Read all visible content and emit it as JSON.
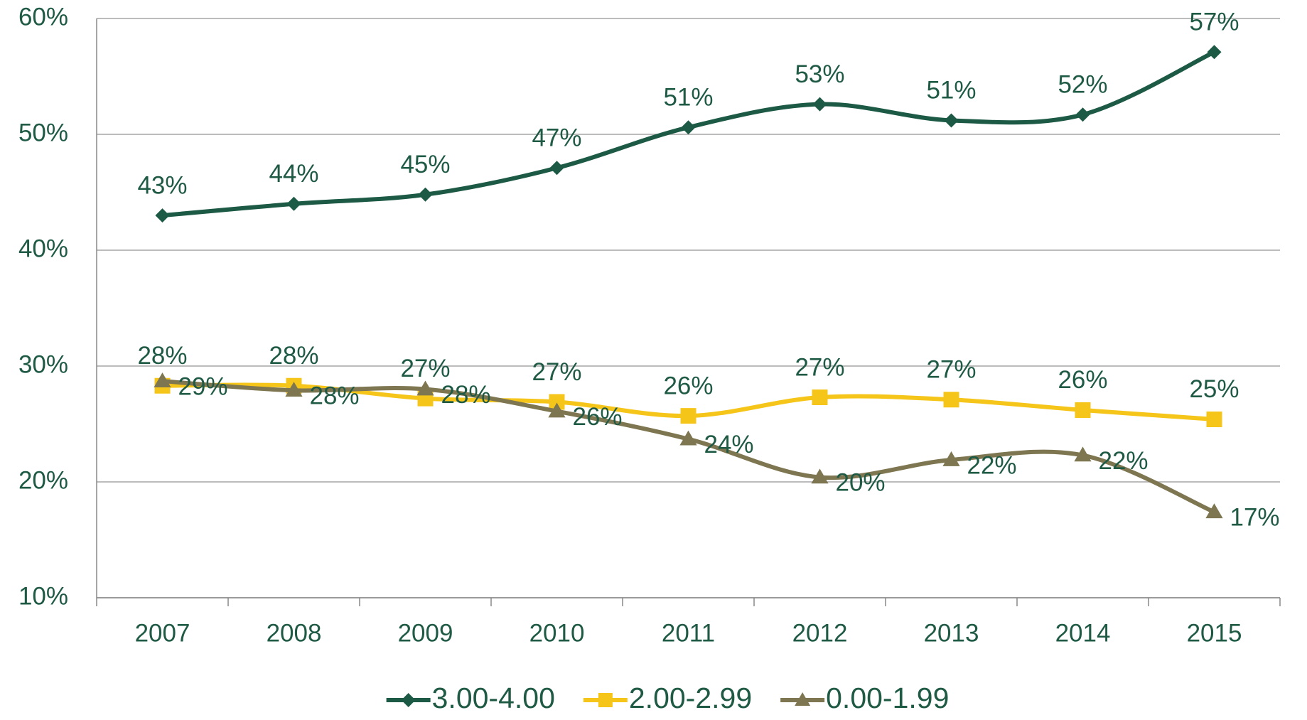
{
  "chart_data": {
    "type": "line",
    "smooth": true,
    "categories": [
      "2007",
      "2008",
      "2009",
      "2010",
      "2011",
      "2012",
      "2013",
      "2014",
      "2015"
    ],
    "series": [
      {
        "name": "3.00-4.00",
        "color": "#1d5a45",
        "marker": "diamond",
        "label_position": "above",
        "values": [
          43,
          44,
          44.8,
          47.1,
          50.6,
          52.6,
          51.2,
          51.7,
          57.1
        ],
        "value_labels": [
          "43%",
          "44%",
          "45%",
          "47%",
          "51%",
          "53%",
          "51%",
          "52%",
          "57%"
        ]
      },
      {
        "name": "2.00-2.99",
        "color": "#f6c51a",
        "marker": "square",
        "label_position": "above",
        "values": [
          28.3,
          28.3,
          27.2,
          26.9,
          25.7,
          27.3,
          27.1,
          26.2,
          25.4
        ],
        "value_labels": [
          "28%",
          "28%",
          "27%",
          "27%",
          "26%",
          "27%",
          "27%",
          "26%",
          "25%"
        ]
      },
      {
        "name": "0.00-1.99",
        "color": "#7e7650",
        "marker": "triangle",
        "label_position": "right",
        "values": [
          28.7,
          27.9,
          28.0,
          26.1,
          23.7,
          20.4,
          21.9,
          22.3,
          17.4
        ],
        "value_labels": [
          "29%",
          "28%",
          "28%",
          "26%",
          "24%",
          "20%",
          "22%",
          "22%",
          "17%"
        ]
      }
    ],
    "ylim": [
      10,
      60
    ],
    "yticks": [
      {
        "value": 10,
        "label": "10%"
      },
      {
        "value": 20,
        "label": "20%"
      },
      {
        "value": 30,
        "label": "30%"
      },
      {
        "value": 40,
        "label": "40%"
      },
      {
        "value": 50,
        "label": "50%"
      },
      {
        "value": 60,
        "label": "60%"
      }
    ],
    "grid": true,
    "legend": "bottom"
  }
}
